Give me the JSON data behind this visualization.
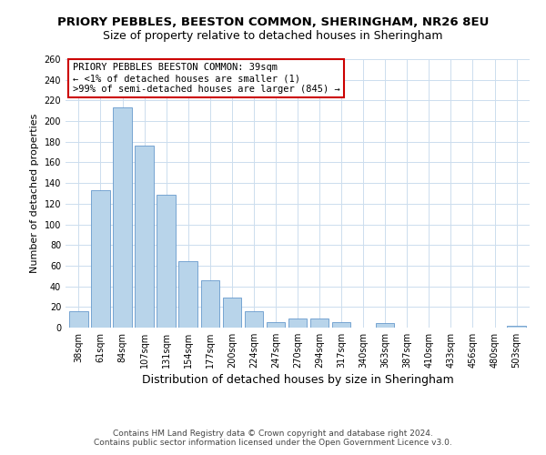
{
  "title": "PRIORY PEBBLES, BEESTON COMMON, SHERINGHAM, NR26 8EU",
  "subtitle": "Size of property relative to detached houses in Sheringham",
  "xlabel": "Distribution of detached houses by size in Sheringham",
  "ylabel": "Number of detached properties",
  "bar_labels": [
    "38sqm",
    "61sqm",
    "84sqm",
    "107sqm",
    "131sqm",
    "154sqm",
    "177sqm",
    "200sqm",
    "224sqm",
    "247sqm",
    "270sqm",
    "294sqm",
    "317sqm",
    "340sqm",
    "363sqm",
    "387sqm",
    "410sqm",
    "433sqm",
    "456sqm",
    "480sqm",
    "503sqm"
  ],
  "bar_values": [
    16,
    133,
    213,
    176,
    129,
    64,
    46,
    29,
    16,
    5,
    9,
    9,
    5,
    0,
    4,
    0,
    0,
    0,
    0,
    0,
    2
  ],
  "bar_color": "#b8d4ea",
  "bar_edge_color": "#6699cc",
  "ylim": [
    0,
    260
  ],
  "yticks": [
    0,
    20,
    40,
    60,
    80,
    100,
    120,
    140,
    160,
    180,
    200,
    220,
    240,
    260
  ],
  "annotation_title": "PRIORY PEBBLES BEESTON COMMON: 39sqm",
  "annotation_line1": "← <1% of detached houses are smaller (1)",
  "annotation_line2": ">99% of semi-detached houses are larger (845) →",
  "annotation_box_color": "#ffffff",
  "annotation_border_color": "#cc0000",
  "footer1": "Contains HM Land Registry data © Crown copyright and database right 2024.",
  "footer2": "Contains public sector information licensed under the Open Government Licence v3.0.",
  "bg_color": "#ffffff",
  "grid_color": "#ccddee",
  "title_fontsize": 9.5,
  "subtitle_fontsize": 9,
  "xlabel_fontsize": 9,
  "ylabel_fontsize": 8,
  "tick_fontsize": 7,
  "annotation_fontsize": 7.5,
  "footer_fontsize": 6.5
}
